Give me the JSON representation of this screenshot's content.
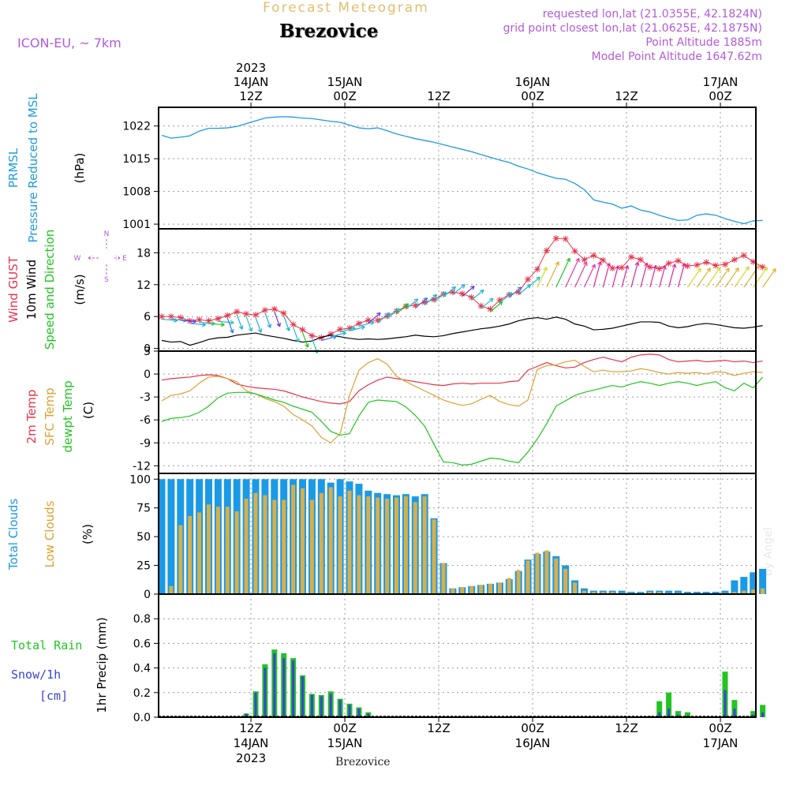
{
  "header": {
    "title": "Forecast Meteogram",
    "location": "Brezovice",
    "model": "ICON-EU,  ~ 7km",
    "requested": "requested lon,lat (21.0355E, 42.1824N)",
    "grid_point": "grid point closest lon,lat (21.0625E, 42.1875N)",
    "point_altitude": "Point Altitude 1885m",
    "model_altitude": "Model Point Altitude 1647.62m",
    "footer_location": "Brezovice",
    "watermark": "by Angel"
  },
  "colors": {
    "pressure": "#1e9ae0",
    "gust": "#e8344a",
    "wind": "#000000",
    "wind_label": "#22c422",
    "temp2m": "#e8344a",
    "sfc": "#e0a030",
    "dew": "#22c422",
    "cloud_total": "#1a9ae6",
    "cloud_low": "#d8ae4a",
    "rain": "#22c422",
    "snow": "#3a44d8",
    "purple": "#b25bd9"
  },
  "chart_data": [
    {
      "type": "line",
      "title": "PRMSL Pressure Reduced to MSL",
      "panel_labels": [
        "PRMSL",
        "Pressure Reduced to MSL"
      ],
      "unit": "(hPa)",
      "x": [
        0,
        1,
        2,
        3,
        4,
        5,
        6,
        7,
        8,
        9,
        10,
        11,
        12,
        13,
        14,
        15,
        16,
        17,
        18,
        19,
        20,
        21,
        22,
        23,
        24,
        25,
        26,
        27,
        28,
        29,
        30,
        31,
        32,
        33,
        34,
        35,
        36,
        37,
        38,
        39,
        40,
        41,
        42,
        43,
        44,
        45,
        46,
        47,
        48,
        49,
        50,
        51,
        52,
        53,
        54,
        55,
        56,
        57,
        58,
        59,
        60,
        61,
        62,
        63,
        64
      ],
      "values": [
        1020.0,
        1019.4,
        1019.6,
        1019.9,
        1020.9,
        1021.5,
        1021.5,
        1021.6,
        1021.9,
        1022.5,
        1023.1,
        1023.7,
        1023.9,
        1024.0,
        1023.9,
        1023.7,
        1023.6,
        1023.3,
        1023.0,
        1022.8,
        1022.2,
        1021.6,
        1021.4,
        1021.6,
        1021.0,
        1020.3,
        1019.8,
        1019.3,
        1018.9,
        1018.5,
        1018.0,
        1017.5,
        1017.0,
        1016.5,
        1015.9,
        1015.3,
        1014.7,
        1014.2,
        1013.4,
        1012.8,
        1012.0,
        1011.4,
        1010.8,
        1010.6,
        1009.7,
        1008.4,
        1006.2,
        1005.7,
        1005.3,
        1004.4,
        1004.9,
        1004.0,
        1003.6,
        1002.9,
        1002.3,
        1001.8,
        1001.9,
        1002.9,
        1003.2,
        1002.9,
        1002.2,
        1001.6,
        1001.1,
        1001.7,
        1001.8
      ],
      "ylim": [
        1000,
        1026
      ],
      "yticks": [
        1001,
        1008,
        1015,
        1022
      ]
    },
    {
      "type": "line",
      "title": "Wind GUST / 10m Wind Speed and Direction",
      "panel_labels": [
        "Wind GUST",
        "10m Wind",
        "Speed and Direction"
      ],
      "unit": "(m/s)",
      "compass": [
        "N",
        "S",
        "W",
        "E"
      ],
      "x": [
        0,
        1,
        2,
        3,
        4,
        5,
        6,
        7,
        8,
        9,
        10,
        11,
        12,
        13,
        14,
        15,
        16,
        17,
        18,
        19,
        20,
        21,
        22,
        23,
        24,
        25,
        26,
        27,
        28,
        29,
        30,
        31,
        32,
        33,
        34,
        35,
        36,
        37,
        38,
        39,
        40,
        41,
        42,
        43,
        44,
        45,
        46,
        47,
        48,
        49,
        50,
        51,
        52,
        53,
        54,
        55,
        56,
        57,
        58,
        59,
        60,
        61,
        62,
        63,
        64
      ],
      "gust": [
        6.0,
        6.0,
        5.8,
        5.2,
        5.4,
        5.2,
        5.6,
        6.2,
        6.9,
        6.5,
        6.3,
        7.2,
        7.4,
        6.6,
        4.5,
        3.5,
        2.4,
        2.0,
        2.7,
        3.6,
        3.8,
        4.7,
        5.3,
        5.3,
        6.1,
        7.0,
        7.9,
        8.1,
        8.7,
        9.2,
        10.2,
        10.6,
        10.3,
        9.6,
        8.0,
        7.4,
        9.1,
        10.1,
        10.6,
        13.0,
        14.9,
        18.4,
        20.7,
        20.6,
        18.3,
        16.7,
        17.5,
        16.6,
        15.1,
        15.2,
        17.2,
        16.7,
        15.3,
        15.0,
        16.0,
        16.5,
        15.5,
        15.7,
        16.2,
        15.6,
        15.8,
        16.7,
        17.5,
        16.3,
        15.3
      ],
      "wind": [
        1.5,
        1.2,
        1.3,
        0.6,
        1.1,
        1.7,
        2.0,
        2.1,
        2.5,
        2.7,
        2.9,
        2.5,
        2.2,
        1.9,
        1.5,
        1.2,
        1.4,
        2.1,
        2.5,
        2.2,
        1.9,
        1.7,
        1.8,
        1.7,
        1.8,
        2.0,
        2.2,
        2.5,
        2.3,
        2.2,
        2.4,
        2.8,
        3.1,
        3.4,
        3.7,
        3.9,
        4.2,
        4.6,
        5.2,
        5.6,
        5.8,
        5.5,
        5.9,
        5.5,
        4.6,
        4.2,
        3.5,
        3.6,
        3.8,
        4.2,
        4.6,
        5.0,
        5.0,
        4.9,
        4.2,
        3.9,
        4.1,
        4.5,
        4.7,
        4.5,
        4.2,
        3.9,
        3.8,
        4.0,
        4.3
      ],
      "ylim": [
        -0.5,
        22.5
      ],
      "yticks": [
        0,
        6,
        12,
        18
      ]
    },
    {
      "type": "line",
      "title": "2m Temp / SFC Temp / dewpt Temp",
      "panel_labels": [
        "2m Temp",
        "SFC Temp",
        "dewpt Temp"
      ],
      "unit": "(C)",
      "x": [
        0,
        1,
        2,
        3,
        4,
        5,
        6,
        7,
        8,
        9,
        10,
        11,
        12,
        13,
        14,
        15,
        16,
        17,
        18,
        19,
        20,
        21,
        22,
        23,
        24,
        25,
        26,
        27,
        28,
        29,
        30,
        31,
        32,
        33,
        34,
        35,
        36,
        37,
        38,
        39,
        40,
        41,
        42,
        43,
        44,
        45,
        46,
        47,
        48,
        49,
        50,
        51,
        52,
        53,
        54,
        55,
        56,
        57,
        58,
        59,
        60,
        61,
        62,
        63,
        64
      ],
      "temp2m": [
        -0.8,
        -0.6,
        -0.5,
        -0.4,
        -0.2,
        -0.1,
        -0.2,
        -0.6,
        -1.3,
        -1.6,
        -1.8,
        -1.9,
        -2.0,
        -2.2,
        -2.6,
        -3.0,
        -3.3,
        -3.6,
        -3.8,
        -3.9,
        -3.6,
        -2.2,
        -1.4,
        -0.8,
        -0.4,
        -0.6,
        -0.8,
        -1.0,
        -1.2,
        -1.4,
        -1.5,
        -1.3,
        -1.2,
        -1.3,
        -1.2,
        -1.2,
        -1.2,
        -1.0,
        -0.9,
        0.5,
        1.0,
        1.5,
        1.1,
        0.8,
        0.9,
        1.5,
        1.9,
        2.2,
        1.9,
        1.6,
        2.2,
        2.5,
        2.6,
        2.5,
        1.9,
        1.6,
        1.7,
        1.8,
        1.6,
        1.7,
        1.8,
        1.6,
        1.7,
        1.5,
        1.7
      ],
      "sfc": [
        -3.5,
        -2.8,
        -2.6,
        -2.2,
        -1.2,
        -0.4,
        -0.3,
        -0.6,
        -1.0,
        -2.2,
        -2.6,
        -3.2,
        -3.6,
        -4.2,
        -5.3,
        -6.0,
        -6.8,
        -8.3,
        -9.0,
        -7.8,
        -2.8,
        0.5,
        1.5,
        2.0,
        1.3,
        -0.3,
        -1.0,
        -1.6,
        -2.2,
        -2.8,
        -3.4,
        -3.8,
        -4.1,
        -3.9,
        -3.3,
        -2.8,
        -3.6,
        -4.0,
        -4.2,
        -3.4,
        0.6,
        1.1,
        1.2,
        1.6,
        1.8,
        1.0,
        0.3,
        0.5,
        0.3,
        0.3,
        0.4,
        0.7,
        0.5,
        0.2,
        0.0,
        0.2,
        0.1,
        0.2,
        0.0,
        0.3,
        0.2,
        -0.2,
        0.1,
        0.3,
        0.2
      ],
      "dew": [
        -6.2,
        -5.8,
        -5.7,
        -5.5,
        -5.0,
        -4.2,
        -3.1,
        -2.5,
        -2.4,
        -2.4,
        -2.6,
        -3.0,
        -3.4,
        -3.7,
        -4.2,
        -4.6,
        -5.0,
        -6.2,
        -7.5,
        -8.0,
        -7.8,
        -5.5,
        -3.7,
        -3.4,
        -3.5,
        -3.6,
        -4.3,
        -5.4,
        -6.8,
        -9.2,
        -11.5,
        -11.6,
        -11.9,
        -11.8,
        -11.4,
        -11.0,
        -11.1,
        -11.4,
        -11.6,
        -10.2,
        -8.5,
        -6.5,
        -4.2,
        -3.5,
        -2.8,
        -2.4,
        -2.1,
        -1.8,
        -1.5,
        -1.7,
        -1.3,
        -1.0,
        -1.2,
        -1.5,
        -1.2,
        -1.0,
        -1.2,
        -1.5,
        -1.2,
        -1.0,
        -1.8,
        -2.2,
        -1.2,
        -1.8,
        -0.4
      ],
      "ylim": [
        -13,
        3
      ],
      "yticks": [
        3,
        0,
        -3,
        -6,
        -9,
        -12
      ]
    },
    {
      "type": "bar",
      "title": "Total Clouds / Low Clouds",
      "panel_labels": [
        "Total Clouds",
        "Low Clouds"
      ],
      "unit": "(%)",
      "x": [
        0,
        1,
        2,
        3,
        4,
        5,
        6,
        7,
        8,
        9,
        10,
        11,
        12,
        13,
        14,
        15,
        16,
        17,
        18,
        19,
        20,
        21,
        22,
        23,
        24,
        25,
        26,
        27,
        28,
        29,
        30,
        31,
        32,
        33,
        34,
        35,
        36,
        37,
        38,
        39,
        40,
        41,
        42,
        43,
        44,
        45,
        46,
        47,
        48,
        49,
        50,
        51,
        52,
        53,
        54,
        55,
        56,
        57,
        58,
        59,
        60,
        61,
        62,
        63,
        64
      ],
      "total": [
        100,
        100,
        100,
        100,
        100,
        100,
        100,
        100,
        100,
        100,
        100,
        100,
        100,
        100,
        100,
        100,
        100,
        100,
        97,
        100,
        98,
        96,
        90,
        88,
        87,
        86,
        87,
        85,
        87,
        66,
        27,
        5,
        6,
        7,
        8,
        9,
        10,
        13,
        20,
        30,
        35,
        37,
        33,
        25,
        12,
        5,
        3,
        3,
        3,
        3,
        2,
        2,
        3,
        3,
        3,
        3,
        2,
        2,
        2,
        2,
        3,
        12,
        15,
        19,
        22
      ],
      "low": [
        0,
        7,
        60,
        68,
        71,
        78,
        76,
        76,
        72,
        83,
        88,
        86,
        82,
        82,
        95,
        92,
        82,
        88,
        93,
        85,
        90,
        86,
        85,
        84,
        83,
        84,
        85,
        80,
        85,
        65,
        27,
        5,
        6,
        7,
        8,
        9,
        10,
        14,
        21,
        29,
        36,
        38,
        31,
        22,
        10,
        3,
        2,
        2,
        2,
        1,
        1,
        1,
        2,
        2,
        1,
        1,
        0,
        0,
        0,
        0,
        1,
        2,
        3,
        4,
        5
      ],
      "ylim": [
        0,
        105
      ],
      "yticks": [
        0,
        25,
        50,
        75,
        100
      ]
    },
    {
      "type": "bar",
      "title": "1hr Precip (mm)",
      "panel_labels": [
        "Total Rain",
        "Snow/1h",
        "[cm]"
      ],
      "unit": "1hr Precip (mm)",
      "x": [
        0,
        1,
        2,
        3,
        4,
        5,
        6,
        7,
        8,
        9,
        10,
        11,
        12,
        13,
        14,
        15,
        16,
        17,
        18,
        19,
        20,
        21,
        22,
        23,
        24,
        25,
        26,
        27,
        28,
        29,
        30,
        31,
        32,
        33,
        34,
        35,
        36,
        37,
        38,
        39,
        40,
        41,
        42,
        43,
        44,
        45,
        46,
        47,
        48,
        49,
        50,
        51,
        52,
        53,
        54,
        55,
        56,
        57,
        58,
        59,
        60,
        61,
        62,
        63,
        64
      ],
      "rain": [
        0,
        0,
        0,
        0,
        0,
        0,
        0,
        0,
        0,
        0.03,
        0.21,
        0.43,
        0.55,
        0.52,
        0.48,
        0.34,
        0.19,
        0.18,
        0.21,
        0.15,
        0.11,
        0.08,
        0.04,
        0,
        0,
        0,
        0,
        0,
        0,
        0,
        0,
        0,
        0,
        0,
        0,
        0,
        0,
        0,
        0,
        0,
        0,
        0,
        0,
        0,
        0,
        0,
        0,
        0,
        0,
        0,
        0,
        0,
        0.01,
        0.13,
        0.2,
        0.05,
        0.04,
        0,
        0,
        0,
        0.37,
        0.14,
        0,
        0.05,
        0.1
      ],
      "snow": [
        0,
        0,
        0,
        0,
        0,
        0,
        0,
        0,
        0,
        0.03,
        0.2,
        0.4,
        0.52,
        0.48,
        0.46,
        0.33,
        0.18,
        0.17,
        0.19,
        0.14,
        0.1,
        0.07,
        0.03,
        0,
        0,
        0,
        0,
        0,
        0,
        0,
        0,
        0,
        0,
        0,
        0,
        0,
        0,
        0,
        0,
        0,
        0,
        0,
        0,
        0,
        0,
        0,
        0,
        0,
        0,
        0,
        0,
        0,
        0,
        0.04,
        0.07,
        0.02,
        0.01,
        0,
        0,
        0,
        0.22,
        0.07,
        0,
        0.02,
        0.04
      ],
      "ylim": [
        0,
        1.0
      ],
      "yticks": [
        0,
        0.2,
        0.4,
        0.6,
        0.8
      ]
    }
  ],
  "time_axis": {
    "year": "2023",
    "ticks": [
      {
        "hour": 9.5,
        "top": [
          "2023",
          "14JAN",
          "12Z"
        ],
        "bottom": [
          "12Z",
          "14JAN",
          "2023"
        ]
      },
      {
        "hour": 19.5,
        "top": [
          "15JAN",
          "00Z"
        ],
        "bottom": [
          "00Z",
          "15JAN"
        ]
      },
      {
        "hour": 29.5,
        "top": [
          "12Z"
        ],
        "bottom": [
          "12Z"
        ]
      },
      {
        "hour": 39.5,
        "top": [
          "16JAN",
          "00Z"
        ],
        "bottom": [
          "00Z",
          "16JAN"
        ]
      },
      {
        "hour": 49.5,
        "top": [
          "12Z"
        ],
        "bottom": [
          "12Z"
        ]
      },
      {
        "hour": 59.5,
        "top": [
          "17JAN",
          "00Z"
        ],
        "bottom": [
          "00Z",
          "17JAN"
        ]
      }
    ]
  }
}
